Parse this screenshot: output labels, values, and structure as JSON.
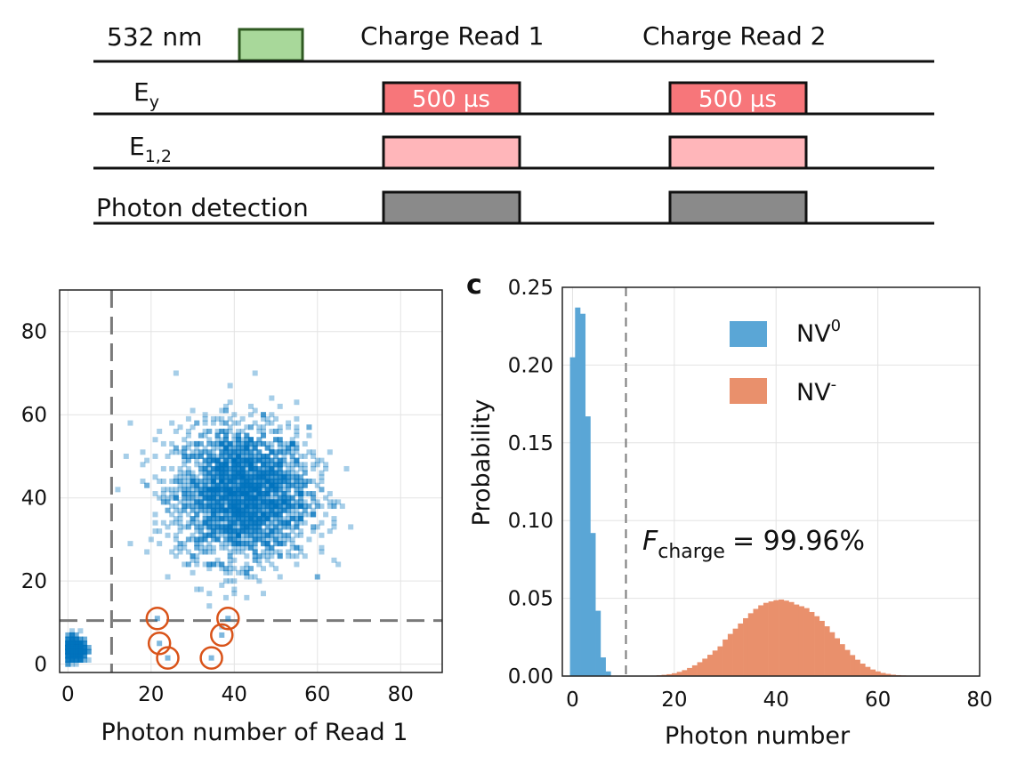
{
  "timing": {
    "headers": [
      "Charge Read 1",
      "Charge Read 2"
    ],
    "rows": [
      {
        "label": "532 nm",
        "base": "",
        "sub": ""
      },
      {
        "label": "",
        "base": "E",
        "sub": "y"
      },
      {
        "label": "",
        "base": "E",
        "sub": "1,2"
      },
      {
        "label": "Photon detection",
        "base": "",
        "sub": ""
      }
    ],
    "pulse_duration_labels": [
      "500 µs",
      "500 µs"
    ],
    "colors": {
      "green_pulse": "#a8d89a",
      "red_pulse": "#f7767a",
      "pink_pulse": "#ffb6ba",
      "detect_pulse": "#8a8a8a"
    }
  },
  "scatter_panel": {
    "xlabel": "Photon number of Read 1",
    "ylabel": "",
    "xlim": [
      -2,
      90
    ],
    "ylim": [
      -2,
      90
    ],
    "x_ticks": [
      "0",
      "20",
      "40",
      "60",
      "80"
    ],
    "y_ticks": [
      "0",
      "20",
      "40",
      "60",
      "80"
    ],
    "threshold": 10.5,
    "point_color": "#0072bd",
    "marker_color": "#d95319"
  },
  "histogram_panel": {
    "panel_letter": "c",
    "xlabel": "Photon number",
    "ylabel": "Probability",
    "xlim": [
      -2,
      80
    ],
    "ylim": [
      0,
      0.25
    ],
    "x_ticks": [
      "0",
      "20",
      "40",
      "60",
      "80"
    ],
    "y_ticks": [
      "0.00",
      "0.05",
      "0.10",
      "0.15",
      "0.20",
      "0.25"
    ],
    "threshold": 10.5,
    "legend": [
      {
        "base": "NV",
        "sup": "0",
        "color": "#5aa6d6"
      },
      {
        "base": "NV",
        "sup": "-",
        "color": "#e9906c"
      }
    ],
    "fidelity": {
      "symbol": "F",
      "subscript": "charge",
      "value": "= 99.96%"
    }
  },
  "chart_data": [
    {
      "type": "scatter",
      "xlabel": "Photon number of Read 1",
      "ylabel": "",
      "xlim": [
        -2,
        90
      ],
      "ylim": [
        -2,
        90
      ],
      "grid": true,
      "clusters": [
        {
          "center": [
            42,
            41
          ],
          "spread": 8,
          "count": 2600
        },
        {
          "center": [
            1.5,
            3.5
          ],
          "spread": 1.5,
          "count": 400
        }
      ],
      "threshold_lines": {
        "x": 10.5,
        "y": 10.5
      },
      "circled_points": [
        [
          21.5,
          11
        ],
        [
          22,
          5
        ],
        [
          24,
          1.5
        ],
        [
          34.5,
          1.5
        ],
        [
          37,
          7
        ],
        [
          38.5,
          11
        ]
      ]
    },
    {
      "type": "bar",
      "title": "",
      "xlabel": "Photon number",
      "ylabel": "Probability",
      "xlim": [
        -2,
        80
      ],
      "ylim": [
        0,
        0.25
      ],
      "grid": true,
      "legend_placement": "top-right",
      "series": [
        {
          "name": "NV0",
          "x": [
            0,
            1,
            2,
            3,
            4,
            5,
            6,
            7
          ],
          "values": [
            0.205,
            0.237,
            0.233,
            0.167,
            0.092,
            0.042,
            0.012,
            0.003
          ]
        },
        {
          "name": "NV-",
          "x": [
            16,
            17,
            18,
            19,
            20,
            21,
            22,
            23,
            24,
            25,
            26,
            27,
            28,
            29,
            30,
            31,
            32,
            33,
            34,
            35,
            36,
            37,
            38,
            39,
            40,
            41,
            42,
            43,
            44,
            45,
            46,
            47,
            48,
            49,
            50,
            51,
            52,
            53,
            54,
            55,
            56,
            57,
            58,
            59,
            60,
            61,
            62,
            63,
            64,
            65,
            66,
            67,
            68,
            69
          ],
          "values": [
            0.0003,
            0.0005,
            0.0008,
            0.0012,
            0.0018,
            0.0027,
            0.0038,
            0.0052,
            0.0069,
            0.0089,
            0.0112,
            0.0137,
            0.0164,
            0.0191,
            0.0235,
            0.0271,
            0.0305,
            0.0338,
            0.0372,
            0.0404,
            0.0432,
            0.0455,
            0.0471,
            0.048,
            0.0488,
            0.0492,
            0.0485,
            0.0476,
            0.046,
            0.0449,
            0.0437,
            0.0412,
            0.0385,
            0.0355,
            0.032,
            0.0282,
            0.0243,
            0.0205,
            0.0168,
            0.0135,
            0.0105,
            0.008,
            0.0059,
            0.0042,
            0.003,
            0.002,
            0.0014,
            0.0009,
            0.0006,
            0.0004,
            0.0003,
            0.0002,
            0.0001,
            0.0001
          ]
        }
      ],
      "threshold_line": 10.5,
      "annotation": "F_charge = 99.96%"
    }
  ]
}
